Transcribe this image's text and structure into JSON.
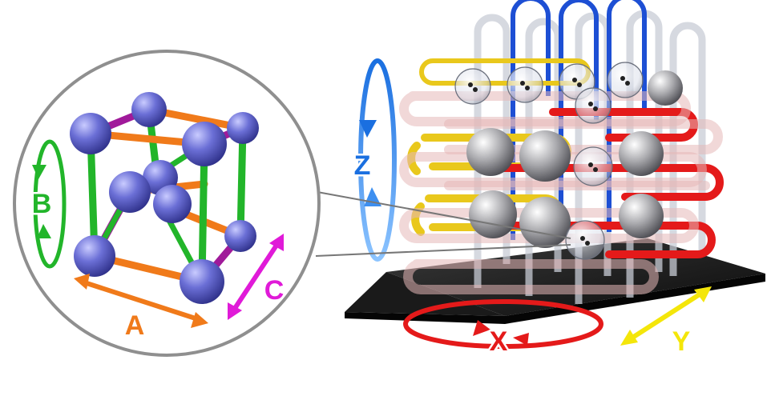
{
  "labels": {
    "a": "A",
    "b": "B",
    "c": "C",
    "x": "X",
    "y": "Y",
    "z": "Z"
  },
  "colors": {
    "a_axis": "#f07a1a",
    "b_axis": "#22b52a",
    "c_axis": "#e01ad8",
    "x_axis": "#e41a1a",
    "y_axis": "#f4e60a",
    "z_axis": "#1a6fe0",
    "atom": "#6b6fd6",
    "base_plate": "#1b1b1b"
  }
}
